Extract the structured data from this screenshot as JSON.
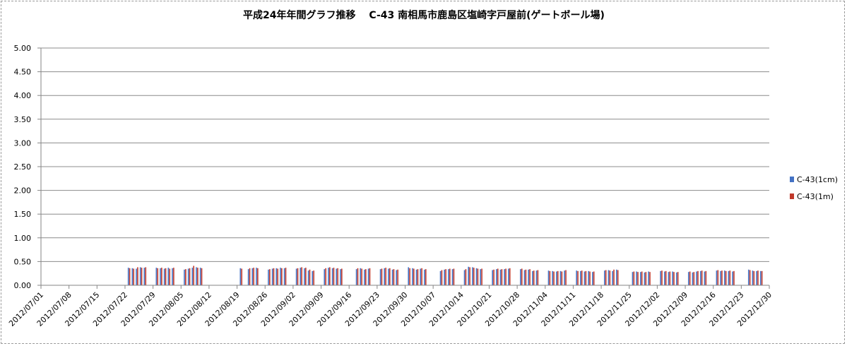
{
  "chart_data": {
    "type": "bar",
    "title": "平成24年年間グラフ推移　 C-43 南相馬市鹿島区塩崎字戸屋前(ゲートボール場)",
    "xlabel": "",
    "ylabel": "",
    "ylim": [
      0,
      5
    ],
    "yticks": [
      "0.00",
      "0.50",
      "1.00",
      "1.50",
      "2.00",
      "2.50",
      "3.00",
      "3.50",
      "4.00",
      "4.50",
      "5.00"
    ],
    "x_start": "2012/07/01",
    "x_end": "2012/12/30",
    "xtick_labels": [
      "2012/07/01",
      "2012/07/08",
      "2012/07/15",
      "2012/07/22",
      "2012/07/29",
      "2012/08/05",
      "2012/08/12",
      "2012/08/19",
      "2012/08/26",
      "2012/09/02",
      "2012/09/09",
      "2012/09/16",
      "2012/09/23",
      "2012/09/30",
      "2012/10/07",
      "2012/10/14",
      "2012/10/21",
      "2012/10/28",
      "2012/11/04",
      "2012/11/11",
      "2012/11/18",
      "2012/11/25",
      "2012/12/02",
      "2012/12/09",
      "2012/12/16",
      "2012/12/23",
      "2012/12/30"
    ],
    "grid": true,
    "legend_position": "right",
    "series": [
      {
        "name": "C-43(1cm)",
        "color": "#4472c4",
        "points": [
          [
            "2012/07/23",
            0.37
          ],
          [
            "2012/07/24",
            0.36
          ],
          [
            "2012/07/25",
            0.35
          ],
          [
            "2012/07/26",
            0.38
          ],
          [
            "2012/07/27",
            0.37
          ],
          [
            "2012/07/30",
            0.37
          ],
          [
            "2012/07/31",
            0.36
          ],
          [
            "2012/08/01",
            0.35
          ],
          [
            "2012/08/02",
            0.37
          ],
          [
            "2012/08/03",
            0.36
          ],
          [
            "2012/08/06",
            0.33
          ],
          [
            "2012/08/07",
            0.35
          ],
          [
            "2012/08/08",
            0.37
          ],
          [
            "2012/08/09",
            0.38
          ],
          [
            "2012/08/10",
            0.37
          ],
          [
            "2012/08/20",
            0.36
          ],
          [
            "2012/08/22",
            0.34
          ],
          [
            "2012/08/23",
            0.36
          ],
          [
            "2012/08/24",
            0.37
          ],
          [
            "2012/08/27",
            0.33
          ],
          [
            "2012/08/28",
            0.35
          ],
          [
            "2012/08/29",
            0.36
          ],
          [
            "2012/08/30",
            0.37
          ],
          [
            "2012/08/31",
            0.36
          ],
          [
            "2012/09/03",
            0.35
          ],
          [
            "2012/09/04",
            0.37
          ],
          [
            "2012/09/05",
            0.36
          ],
          [
            "2012/09/06",
            0.31
          ],
          [
            "2012/09/07",
            0.3
          ],
          [
            "2012/09/10",
            0.34
          ],
          [
            "2012/09/11",
            0.37
          ],
          [
            "2012/09/12",
            0.36
          ],
          [
            "2012/09/13",
            0.35
          ],
          [
            "2012/09/14",
            0.34
          ],
          [
            "2012/09/18",
            0.34
          ],
          [
            "2012/09/19",
            0.36
          ],
          [
            "2012/09/20",
            0.33
          ],
          [
            "2012/09/21",
            0.35
          ],
          [
            "2012/09/24",
            0.34
          ],
          [
            "2012/09/25",
            0.36
          ],
          [
            "2012/09/26",
            0.35
          ],
          [
            "2012/09/27",
            0.33
          ],
          [
            "2012/09/28",
            0.32
          ],
          [
            "2012/10/01",
            0.38
          ],
          [
            "2012/10/02",
            0.36
          ],
          [
            "2012/10/03",
            0.33
          ],
          [
            "2012/10/04",
            0.35
          ],
          [
            "2012/10/05",
            0.33
          ],
          [
            "2012/10/09",
            0.3
          ],
          [
            "2012/10/10",
            0.33
          ],
          [
            "2012/10/11",
            0.34
          ],
          [
            "2012/10/12",
            0.34
          ],
          [
            "2012/10/15",
            0.32
          ],
          [
            "2012/10/16",
            0.39
          ],
          [
            "2012/10/17",
            0.38
          ],
          [
            "2012/10/18",
            0.36
          ],
          [
            "2012/10/19",
            0.34
          ],
          [
            "2012/10/22",
            0.32
          ],
          [
            "2012/10/23",
            0.34
          ],
          [
            "2012/10/24",
            0.33
          ],
          [
            "2012/10/25",
            0.34
          ],
          [
            "2012/10/26",
            0.35
          ],
          [
            "2012/10/29",
            0.34
          ],
          [
            "2012/10/30",
            0.32
          ],
          [
            "2012/10/31",
            0.33
          ],
          [
            "2012/11/01",
            0.3
          ],
          [
            "2012/11/02",
            0.31
          ],
          [
            "2012/11/05",
            0.31
          ],
          [
            "2012/11/06",
            0.3
          ],
          [
            "2012/11/07",
            0.29
          ],
          [
            "2012/11/08",
            0.3
          ],
          [
            "2012/11/09",
            0.31
          ],
          [
            "2012/11/12",
            0.31
          ],
          [
            "2012/11/13",
            0.3
          ],
          [
            "2012/11/14",
            0.29
          ],
          [
            "2012/11/15",
            0.3
          ],
          [
            "2012/11/16",
            0.28
          ],
          [
            "2012/11/19",
            0.31
          ],
          [
            "2012/11/20",
            0.32
          ],
          [
            "2012/11/21",
            0.3
          ],
          [
            "2012/11/22",
            0.33
          ],
          [
            "2012/11/26",
            0.28
          ],
          [
            "2012/11/27",
            0.29
          ],
          [
            "2012/11/28",
            0.28
          ],
          [
            "2012/11/29",
            0.27
          ],
          [
            "2012/11/30",
            0.29
          ],
          [
            "2012/12/03",
            0.3
          ],
          [
            "2012/12/04",
            0.29
          ],
          [
            "2012/12/05",
            0.28
          ],
          [
            "2012/12/06",
            0.29
          ],
          [
            "2012/12/07",
            0.27
          ],
          [
            "2012/12/10",
            0.28
          ],
          [
            "2012/12/11",
            0.27
          ],
          [
            "2012/12/12",
            0.29
          ],
          [
            "2012/12/13",
            0.3
          ],
          [
            "2012/12/14",
            0.29
          ],
          [
            "2012/12/17",
            0.31
          ],
          [
            "2012/12/18",
            0.3
          ],
          [
            "2012/12/19",
            0.31
          ],
          [
            "2012/12/20",
            0.3
          ],
          [
            "2012/12/21",
            0.29
          ],
          [
            "2012/12/25",
            0.33
          ],
          [
            "2012/12/26",
            0.31
          ],
          [
            "2012/12/27",
            0.3
          ],
          [
            "2012/12/28",
            0.3
          ]
        ]
      },
      {
        "name": "C-43(1m)",
        "color": "#c0392b",
        "points": [
          [
            "2012/07/23",
            0.36
          ],
          [
            "2012/07/24",
            0.35
          ],
          [
            "2012/07/25",
            0.38
          ],
          [
            "2012/07/26",
            0.37
          ],
          [
            "2012/07/27",
            0.38
          ],
          [
            "2012/07/30",
            0.36
          ],
          [
            "2012/07/31",
            0.37
          ],
          [
            "2012/08/01",
            0.36
          ],
          [
            "2012/08/02",
            0.35
          ],
          [
            "2012/08/03",
            0.37
          ],
          [
            "2012/08/06",
            0.34
          ],
          [
            "2012/08/07",
            0.36
          ],
          [
            "2012/08/08",
            0.41
          ],
          [
            "2012/08/09",
            0.37
          ],
          [
            "2012/08/10",
            0.36
          ],
          [
            "2012/08/20",
            0.35
          ],
          [
            "2012/08/22",
            0.36
          ],
          [
            "2012/08/23",
            0.37
          ],
          [
            "2012/08/24",
            0.36
          ],
          [
            "2012/08/27",
            0.34
          ],
          [
            "2012/08/28",
            0.36
          ],
          [
            "2012/08/29",
            0.35
          ],
          [
            "2012/08/30",
            0.36
          ],
          [
            "2012/08/31",
            0.37
          ],
          [
            "2012/09/03",
            0.36
          ],
          [
            "2012/09/04",
            0.38
          ],
          [
            "2012/09/05",
            0.37
          ],
          [
            "2012/09/06",
            0.33
          ],
          [
            "2012/09/07",
            0.31
          ],
          [
            "2012/09/10",
            0.36
          ],
          [
            "2012/09/11",
            0.38
          ],
          [
            "2012/09/12",
            0.37
          ],
          [
            "2012/09/13",
            0.36
          ],
          [
            "2012/09/14",
            0.35
          ],
          [
            "2012/09/18",
            0.36
          ],
          [
            "2012/09/19",
            0.35
          ],
          [
            "2012/09/20",
            0.34
          ],
          [
            "2012/09/21",
            0.36
          ],
          [
            "2012/09/24",
            0.35
          ],
          [
            "2012/09/25",
            0.37
          ],
          [
            "2012/09/26",
            0.36
          ],
          [
            "2012/09/27",
            0.34
          ],
          [
            "2012/09/28",
            0.33
          ],
          [
            "2012/10/01",
            0.36
          ],
          [
            "2012/10/02",
            0.35
          ],
          [
            "2012/10/03",
            0.34
          ],
          [
            "2012/10/04",
            0.36
          ],
          [
            "2012/10/05",
            0.34
          ],
          [
            "2012/10/09",
            0.32
          ],
          [
            "2012/10/10",
            0.34
          ],
          [
            "2012/10/11",
            0.35
          ],
          [
            "2012/10/12",
            0.35
          ],
          [
            "2012/10/15",
            0.34
          ],
          [
            "2012/10/16",
            0.38
          ],
          [
            "2012/10/17",
            0.37
          ],
          [
            "2012/10/18",
            0.35
          ],
          [
            "2012/10/19",
            0.35
          ],
          [
            "2012/10/22",
            0.33
          ],
          [
            "2012/10/23",
            0.35
          ],
          [
            "2012/10/24",
            0.34
          ],
          [
            "2012/10/25",
            0.35
          ],
          [
            "2012/10/26",
            0.36
          ],
          [
            "2012/10/29",
            0.35
          ],
          [
            "2012/10/30",
            0.33
          ],
          [
            "2012/10/31",
            0.34
          ],
          [
            "2012/11/01",
            0.31
          ],
          [
            "2012/11/02",
            0.32
          ],
          [
            "2012/11/05",
            0.3
          ],
          [
            "2012/11/06",
            0.29
          ],
          [
            "2012/11/07",
            0.3
          ],
          [
            "2012/11/08",
            0.29
          ],
          [
            "2012/11/09",
            0.32
          ],
          [
            "2012/11/12",
            0.3
          ],
          [
            "2012/11/13",
            0.31
          ],
          [
            "2012/11/14",
            0.3
          ],
          [
            "2012/11/15",
            0.29
          ],
          [
            "2012/11/16",
            0.29
          ],
          [
            "2012/11/19",
            0.32
          ],
          [
            "2012/11/20",
            0.31
          ],
          [
            "2012/11/21",
            0.33
          ],
          [
            "2012/11/22",
            0.32
          ],
          [
            "2012/11/26",
            0.29
          ],
          [
            "2012/11/27",
            0.28
          ],
          [
            "2012/11/28",
            0.29
          ],
          [
            "2012/11/29",
            0.28
          ],
          [
            "2012/11/30",
            0.28
          ],
          [
            "2012/12/03",
            0.31
          ],
          [
            "2012/12/04",
            0.3
          ],
          [
            "2012/12/05",
            0.29
          ],
          [
            "2012/12/06",
            0.28
          ],
          [
            "2012/12/07",
            0.28
          ],
          [
            "2012/12/10",
            0.29
          ],
          [
            "2012/12/11",
            0.28
          ],
          [
            "2012/12/12",
            0.3
          ],
          [
            "2012/12/13",
            0.31
          ],
          [
            "2012/12/14",
            0.3
          ],
          [
            "2012/12/17",
            0.32
          ],
          [
            "2012/12/18",
            0.31
          ],
          [
            "2012/12/19",
            0.3
          ],
          [
            "2012/12/20",
            0.31
          ],
          [
            "2012/12/21",
            0.3
          ],
          [
            "2012/12/25",
            0.32
          ],
          [
            "2012/12/26",
            0.3
          ],
          [
            "2012/12/27",
            0.31
          ],
          [
            "2012/12/28",
            0.3
          ]
        ]
      }
    ]
  }
}
